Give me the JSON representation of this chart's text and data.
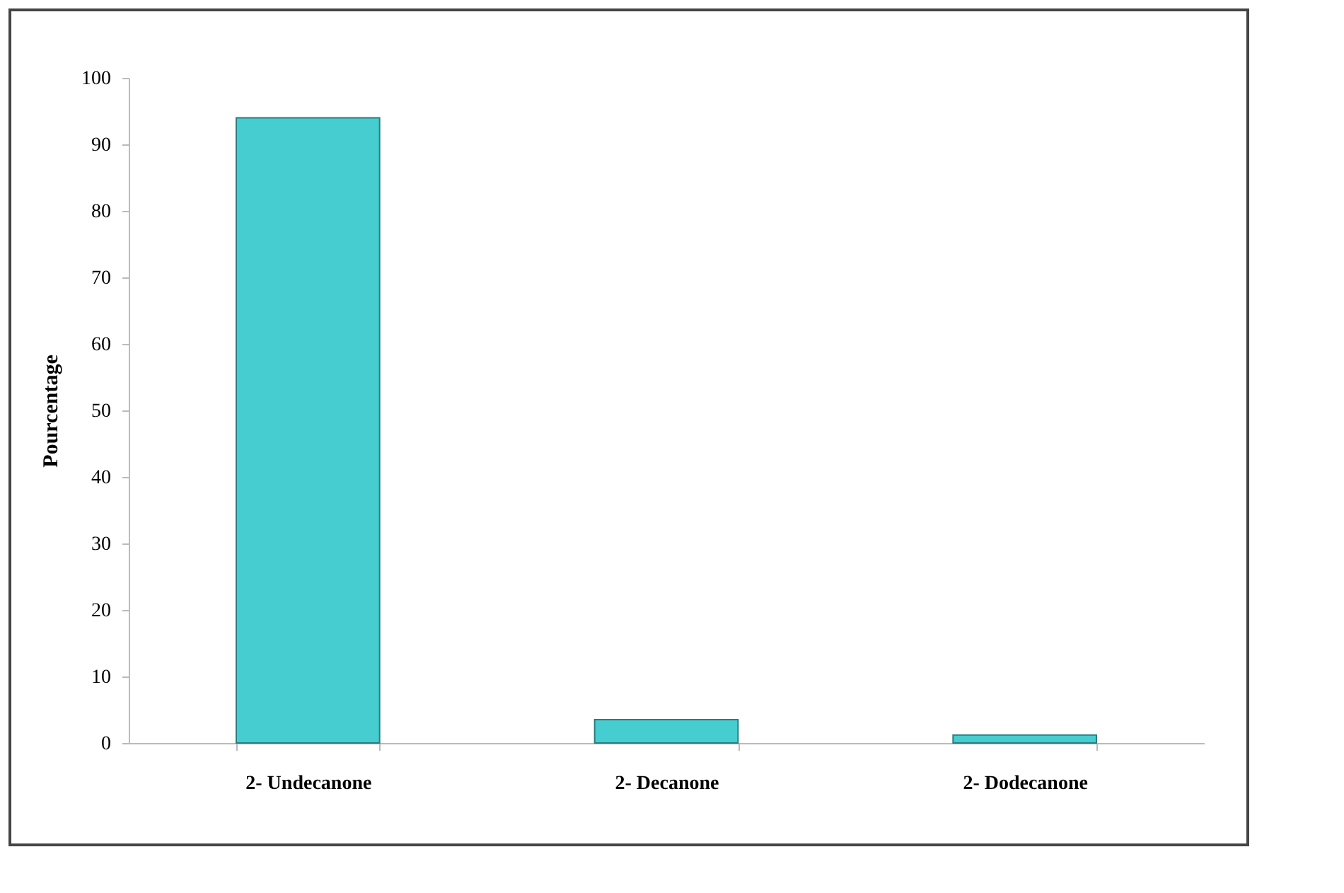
{
  "chart_data": {
    "type": "bar",
    "ylabel": "Pourcentage",
    "categories": [
      "2- Undecanone",
      "2- Decanone",
      "2- Dodecanone"
    ],
    "values": [
      94,
      3.5,
      1.2
    ],
    "color": "#45cdcf",
    "ylim": [
      0,
      100
    ],
    "yticks": [
      0,
      10,
      20,
      30,
      40,
      50,
      60,
      70,
      80,
      90,
      100
    ],
    "grid": false,
    "legend": false
  }
}
